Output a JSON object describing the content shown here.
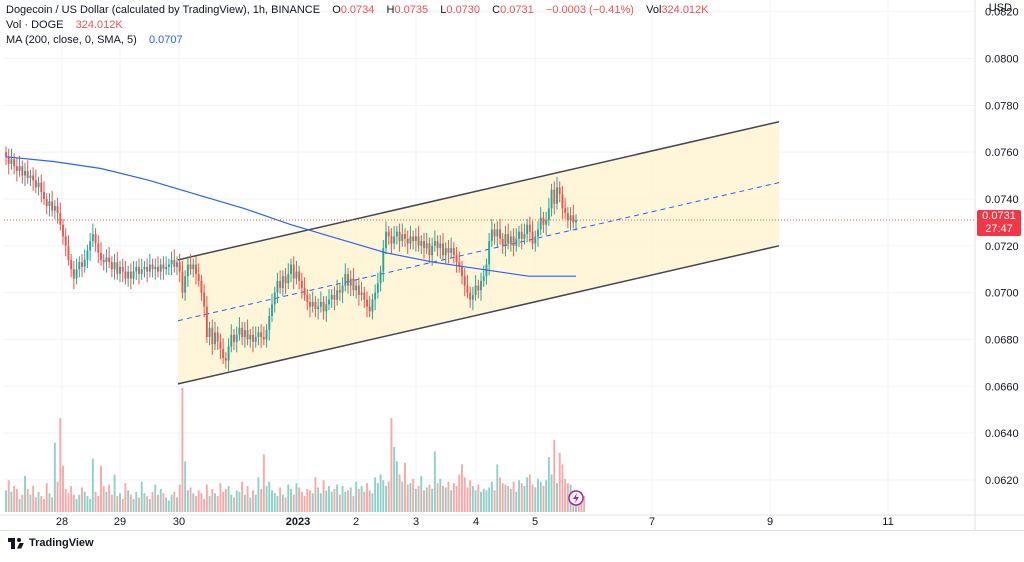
{
  "legend": {
    "title": "Dogecoin / US Dollar (calculated by TradingView), 1h, BINANCE",
    "ohlc": [
      {
        "label": "O",
        "value": "0.0734"
      },
      {
        "label": "H",
        "value": "0.0735"
      },
      {
        "label": "L",
        "value": "0.0730"
      },
      {
        "label": "C",
        "value": "0.0731"
      },
      {
        "label": "",
        "value": "−0.0003 (−0.41%)"
      },
      {
        "label": "Vol",
        "value": "324.012K"
      }
    ],
    "vol_row": {
      "label": "Vol · DOGE",
      "value": "324.012K"
    },
    "ma_row": {
      "label": "MA (200, close, 0, SMA, 5)",
      "value": "0.0707"
    }
  },
  "price_axis": {
    "unit": "USD",
    "ticks": [
      "0.0820",
      "0.0800",
      "0.0780",
      "0.0760",
      "0.0740",
      "0.0720",
      "0.0700",
      "0.0680",
      "0.0660",
      "0.0640",
      "0.0620"
    ],
    "current_price": "0.0731",
    "countdown": "27:47"
  },
  "time_axis": {
    "ticks": [
      "28",
      "29",
      "30",
      "2023",
      "2",
      "3",
      "4",
      "5",
      "7",
      "9",
      "11"
    ]
  },
  "footer": {
    "brand": "TradingView"
  },
  "colors": {
    "up": "#26a69a",
    "down": "#ef5350",
    "ma": "#2962ff",
    "channel_fill": "#fff3d1",
    "channel_line": "#434651",
    "up_volume": "#8ed1c9",
    "down_volume": "#f7a9a7"
  },
  "chart_data": {
    "type": "candlestick",
    "timeframe": "1h",
    "symbol": "DOGE/USD",
    "ylim": [
      0.0605,
      0.0825
    ],
    "closes": [
      0.0758,
      0.0755,
      0.0757,
      0.0754,
      0.0752,
      0.0754,
      0.075,
      0.0752,
      0.0749,
      0.075,
      0.0748,
      0.0745,
      0.0747,
      0.0743,
      0.074,
      0.0737,
      0.0739,
      0.0735,
      0.0737,
      0.0734,
      0.0729,
      0.0724,
      0.072,
      0.0714,
      0.071,
      0.0706,
      0.071,
      0.0713,
      0.0711,
      0.0714,
      0.0718,
      0.0722,
      0.0725,
      0.0721,
      0.0717,
      0.0714,
      0.0713,
      0.0715,
      0.0713,
      0.071,
      0.0713,
      0.0708,
      0.0711,
      0.0709,
      0.0706,
      0.0709,
      0.0706,
      0.0709,
      0.0711,
      0.0708,
      0.071,
      0.0711,
      0.0709,
      0.0712,
      0.071,
      0.0711,
      0.0709,
      0.0712,
      0.071,
      0.0711,
      0.0712,
      0.0714,
      0.0711,
      0.0713,
      0.0709,
      0.07,
      0.0707,
      0.0712,
      0.071,
      0.0712,
      0.0708,
      0.0705,
      0.07,
      0.0694,
      0.0681,
      0.0685,
      0.0678,
      0.0683,
      0.0679,
      0.0676,
      0.0672,
      0.0671,
      0.0677,
      0.0682,
      0.0679,
      0.0682,
      0.0685,
      0.0681,
      0.0684,
      0.068,
      0.0682,
      0.0679,
      0.0681,
      0.0683,
      0.0681,
      0.068,
      0.0684,
      0.069,
      0.0695,
      0.07,
      0.0705,
      0.0702,
      0.0707,
      0.0704,
      0.0708,
      0.0712,
      0.0706,
      0.0709,
      0.0705,
      0.0702,
      0.0699,
      0.0696,
      0.0694,
      0.0696,
      0.0693,
      0.0694,
      0.0696,
      0.0692,
      0.0695,
      0.0697,
      0.0699,
      0.0697,
      0.0701,
      0.07,
      0.0703,
      0.0708,
      0.0703,
      0.0706,
      0.0701,
      0.0703,
      0.0699,
      0.07,
      0.0697,
      0.0694,
      0.0692,
      0.0697,
      0.07,
      0.0704,
      0.0709,
      0.0719,
      0.0726,
      0.0724,
      0.0721,
      0.0724,
      0.0726,
      0.0722,
      0.0725,
      0.0723,
      0.0721,
      0.0724,
      0.0722,
      0.0724,
      0.072,
      0.0722,
      0.0719,
      0.0721,
      0.0716,
      0.072,
      0.0722,
      0.0719,
      0.0721,
      0.0716,
      0.0719,
      0.0717,
      0.0719,
      0.0716,
      0.0713,
      0.0711,
      0.0707,
      0.0703,
      0.07,
      0.0697,
      0.0699,
      0.0703,
      0.0701,
      0.0705,
      0.0707,
      0.0712,
      0.0722,
      0.0727,
      0.0724,
      0.0727,
      0.0723,
      0.072,
      0.0725,
      0.0721,
      0.0724,
      0.072,
      0.0723,
      0.0726,
      0.0723,
      0.0725,
      0.0729,
      0.0726,
      0.0721,
      0.0724,
      0.0727,
      0.0732,
      0.0729,
      0.0731,
      0.0736,
      0.0744,
      0.0738,
      0.0745,
      0.0742,
      0.0736,
      0.0734,
      0.0731,
      0.0733,
      0.073,
      0.0731
    ],
    "ma200": [
      0.0758,
      0.0756,
      0.0753,
      0.0748,
      0.0742,
      0.0736,
      0.0729,
      0.0723,
      0.0717,
      0.0713,
      0.071,
      0.0707,
      0.0707
    ],
    "volumes_k": [
      150,
      220,
      140,
      180,
      160,
      90,
      120,
      250,
      160,
      120,
      180,
      100,
      140,
      110,
      90,
      200,
      130,
      100,
      480,
      210,
      650,
      320,
      160,
      130,
      180,
      120,
      90,
      120,
      170,
      140,
      110,
      90,
      370,
      140,
      110,
      320,
      180,
      140,
      190,
      120,
      260,
      110,
      130,
      90,
      200,
      150,
      120,
      90,
      140,
      100,
      210,
      130,
      110,
      90,
      140,
      190,
      120,
      160,
      130,
      100,
      80,
      120,
      140,
      100,
      190,
      860,
      350,
      150,
      170,
      130,
      110,
      150,
      130,
      90,
      190,
      110,
      160,
      130,
      110,
      200,
      140,
      160,
      180,
      120,
      100,
      150,
      140,
      210,
      120,
      180,
      100,
      150,
      120,
      240,
      160,
      400,
      180,
      210,
      150,
      130,
      110,
      170,
      120,
      100,
      190,
      160,
      120,
      200,
      170,
      140,
      110,
      160,
      150,
      130,
      240,
      170,
      130,
      220,
      150,
      180,
      140,
      160,
      190,
      120,
      180,
      140,
      150,
      170,
      110,
      210,
      160,
      180,
      140,
      200,
      150,
      130,
      240,
      200,
      260,
      220,
      180,
      210,
      650,
      450,
      350,
      260,
      210,
      340,
      190,
      200,
      230,
      160,
      180,
      250,
      150,
      170,
      190,
      160,
      420,
      200,
      230,
      180,
      170,
      210,
      150,
      200,
      180,
      260,
      330,
      240,
      170,
      220,
      180,
      150,
      190,
      140,
      160,
      150,
      170,
      210,
      150,
      330,
      240,
      200,
      190,
      180,
      160,
      210,
      140,
      220,
      200,
      180,
      240,
      260,
      190,
      170,
      230,
      210,
      180,
      220,
      380,
      260,
      500,
      200,
      410,
      330,
      230,
      200,
      190,
      150,
      130,
      120,
      140,
      110
    ],
    "channel": {
      "lower_start": 0.0661,
      "lower_end": 0.072,
      "upper_start": 0.0714,
      "upper_end": 0.0773,
      "midline_start": 0.0688,
      "midline_end": 0.0747
    }
  }
}
